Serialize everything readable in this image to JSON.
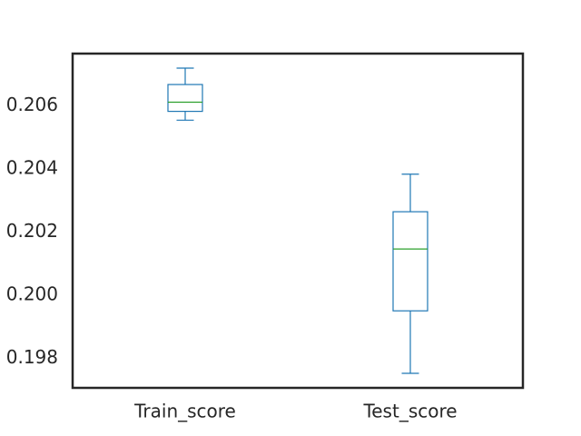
{
  "chart_data": {
    "type": "box",
    "categories": [
      "Train_score",
      "Test_score"
    ],
    "boxes": [
      {
        "category": "Train_score",
        "whisker_low": 0.20555,
        "q1": 0.20583,
        "median": 0.20612,
        "q3": 0.20668,
        "whisker_high": 0.2072
      },
      {
        "category": "Test_score",
        "whisker_low": 0.19753,
        "q1": 0.19951,
        "median": 0.20147,
        "q3": 0.20265,
        "whisker_high": 0.20384
      }
    ],
    "ylim": [
      0.19707,
      0.20766
    ],
    "yticks": [
      0.198,
      0.2,
      0.202,
      0.204,
      0.206
    ],
    "ytick_labels": [
      "0.198",
      "0.200",
      "0.202",
      "0.204",
      "0.206"
    ],
    "grid": false,
    "colors": {
      "box": "#1f77b4",
      "median": "#2ca02c",
      "frame": "#262626",
      "text": "#262626"
    }
  }
}
